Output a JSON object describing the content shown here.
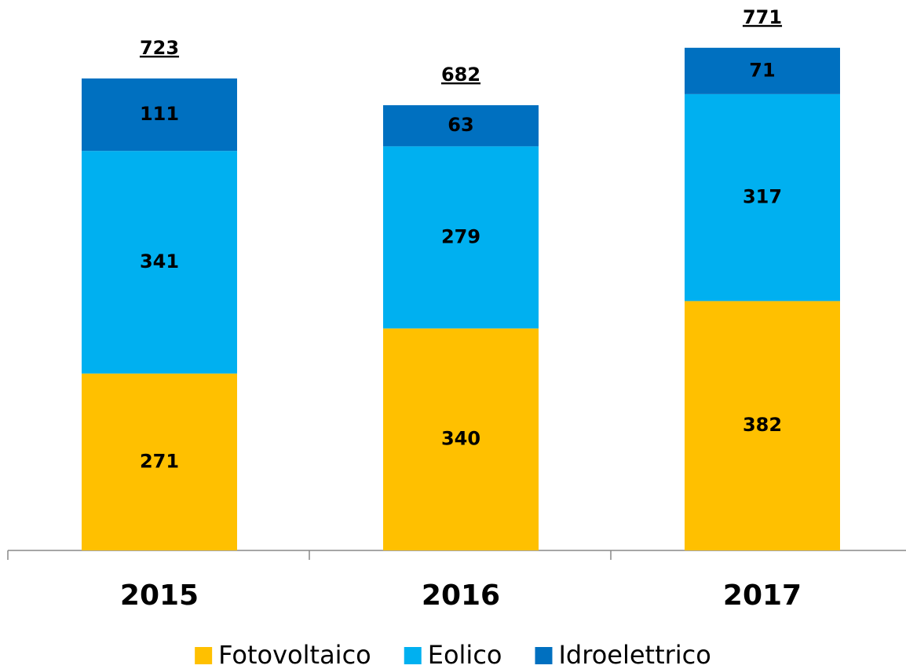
{
  "chart_data": {
    "type": "stacked-bar",
    "categories": [
      "2015",
      "2016",
      "2017"
    ],
    "series": [
      {
        "name": "Fotovoltaico",
        "color": "#FFC000",
        "values": [
          271,
          340,
          382
        ]
      },
      {
        "name": "Eolico",
        "color": "#00B0F0",
        "values": [
          341,
          279,
          317
        ]
      },
      {
        "name": "Idroelettrico",
        "color": "#0070C0",
        "values": [
          111,
          63,
          71
        ]
      }
    ],
    "totals": [
      723,
      682,
      771
    ]
  }
}
